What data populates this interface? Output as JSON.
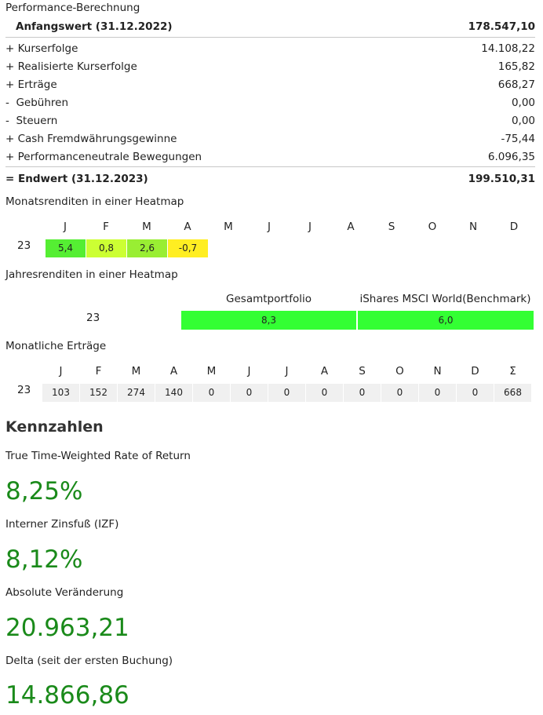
{
  "performance": {
    "title": "Performance-Berechnung",
    "rows": [
      {
        "label": "Anfangswert (31.12.2022)",
        "value": "178.547,10"
      },
      {
        "label": "+ Kurserfolge",
        "value": "14.108,22"
      },
      {
        "label": "+ Realisierte Kurserfolge",
        "value": "165,82"
      },
      {
        "label": "+ Erträge",
        "value": "668,27"
      },
      {
        "label": "-  Gebühren",
        "value": "0,00"
      },
      {
        "label": "-  Steuern",
        "value": "0,00"
      },
      {
        "label": "+ Cash Fremdwährungsgewinne",
        "value": "-75,44"
      },
      {
        "label": "+ Performanceneutrale Bewegungen",
        "value": "6.096,35"
      },
      {
        "label": "= Endwert (31.12.2023)",
        "value": "199.510,31"
      }
    ]
  },
  "monthly_heatmap": {
    "title": "Monatsrenditen in einer Heatmap",
    "months": [
      "J",
      "F",
      "M",
      "A",
      "M",
      "J",
      "J",
      "A",
      "S",
      "O",
      "N",
      "D"
    ],
    "year": "23",
    "values": [
      "5,4",
      "0,8",
      "2,6",
      "-0,7"
    ],
    "colors": [
      "#55ee33",
      "#ccff33",
      "#99ee33",
      "#ffee22"
    ]
  },
  "yearly_heatmap": {
    "title": "Jahresrenditen in einer Heatmap",
    "col1": "Gesamtportfolio",
    "col2": "iShares MSCI World(Benchmark)",
    "year": "23",
    "val1": "8,3",
    "val2": "6,0"
  },
  "monthly_income": {
    "title": "Monatliche Erträge",
    "months": [
      "J",
      "F",
      "M",
      "A",
      "M",
      "J",
      "J",
      "A",
      "S",
      "O",
      "N",
      "D",
      "Σ"
    ],
    "year": "23",
    "values": [
      "103",
      "152",
      "274",
      "140",
      "0",
      "0",
      "0",
      "0",
      "0",
      "0",
      "0",
      "0",
      "668"
    ]
  },
  "kennzahlen": {
    "title": "Kennzahlen",
    "items": [
      {
        "label": "True Time-Weighted Rate of Return",
        "value": "8,25%"
      },
      {
        "label": "Interner Zinsfuß (IZF)",
        "value": "8,12%"
      },
      {
        "label": "Absolute Veränderung",
        "value": "20.963,21"
      },
      {
        "label": "Delta (seit der ersten Buchung)",
        "value": "14.866,86"
      }
    ]
  },
  "colors": {
    "kpi_green": "#1a8a1a",
    "yearly_green": "#33ff33",
    "cell_grey": "#f0f0f0"
  }
}
